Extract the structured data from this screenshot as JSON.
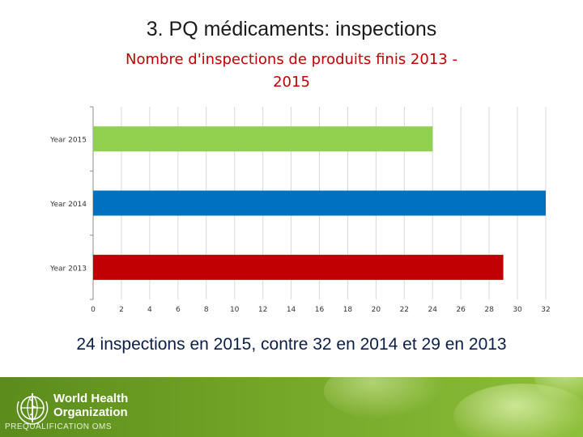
{
  "slide": {
    "title": "3. PQ médicaments: inspections",
    "caption": "24 inspections en 2015, contre 32 en 2014 et 29 en 2013"
  },
  "chart_data": {
    "type": "bar",
    "orientation": "horizontal",
    "title_line1": "Nombre d'inspections de produits finis 2013 -",
    "title_line2": "2015",
    "categories": [
      "Year 2015",
      "Year 2014",
      "Year 2013"
    ],
    "values": [
      24,
      32,
      29
    ],
    "colors": [
      "#92d050",
      "#0070c0",
      "#c00000"
    ],
    "xlim": [
      0,
      32
    ],
    "xticks": [
      "0",
      "2",
      "4",
      "6",
      "8",
      "10",
      "12",
      "14",
      "16",
      "18",
      "20",
      "22",
      "24",
      "26",
      "28",
      "30",
      "32"
    ],
    "grid": true
  },
  "footer": {
    "org_line1": "World Health",
    "org_line2": "Organization",
    "program": "PREQUALIFICATION OMS",
    "logo_icon": "who-emblem-icon",
    "background_color": "#73a527"
  }
}
